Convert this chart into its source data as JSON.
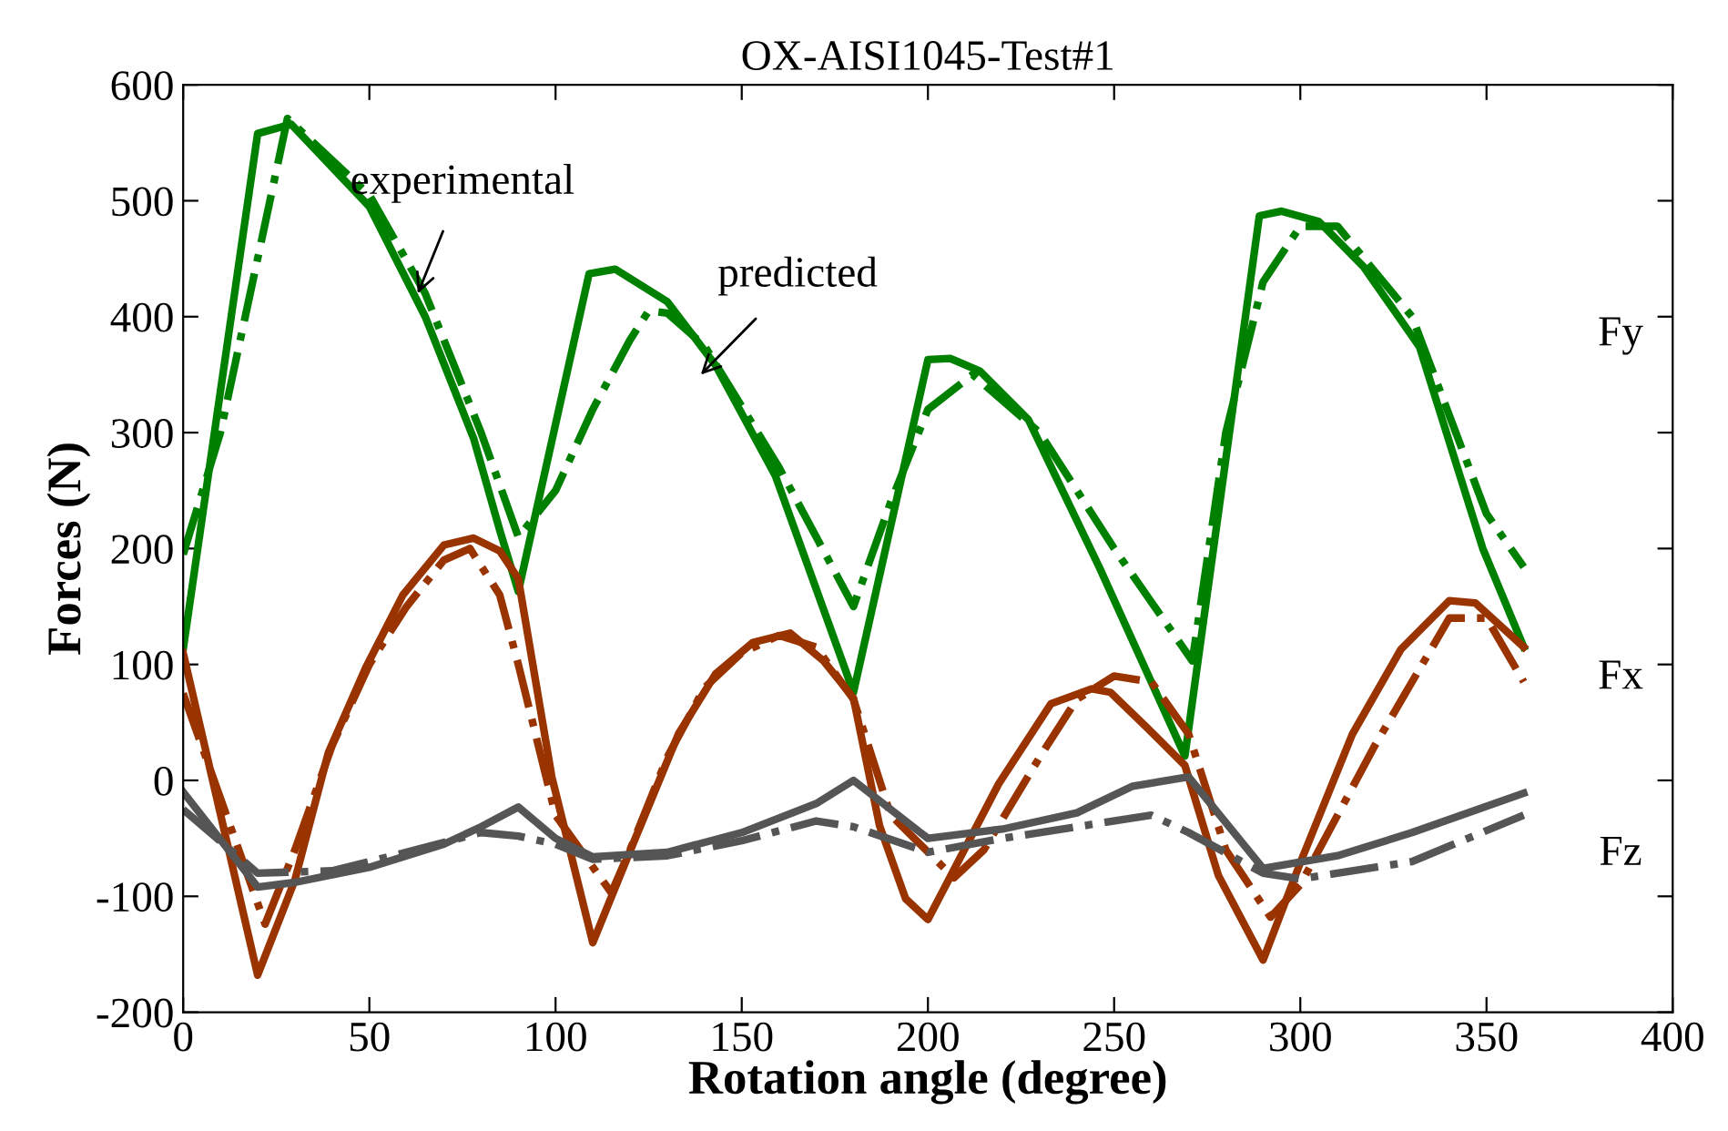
{
  "chart_data": {
    "type": "line",
    "title": "OX-AISI1045-Test#1",
    "xlabel": "Rotation angle (degree)",
    "ylabel": "Forces (N)",
    "xlim": [
      0,
      400
    ],
    "xticks": [
      0,
      50,
      100,
      150,
      200,
      250,
      300,
      350,
      400
    ],
    "ylim": [
      -200,
      600
    ],
    "yticks": [
      -200,
      -100,
      0,
      100,
      200,
      300,
      400,
      500,
      600
    ],
    "grid": false,
    "legend": false,
    "marker": "none",
    "series": [
      {
        "color": "#008000",
        "line_style": "solid",
        "x": [
          0,
          20,
          29,
          50,
          65,
          78,
          85,
          90,
          109,
          116,
          130,
          143,
          159,
          180,
          200,
          206,
          214,
          227,
          246,
          269,
          289,
          295,
          305,
          317,
          332,
          349,
          360
        ],
        "values": [
          113,
          558,
          566,
          495,
          400,
          295,
          216,
          163,
          437,
          441,
          413,
          358,
          263,
          76,
          363,
          364,
          353,
          311,
          184,
          21,
          487,
          491,
          482,
          443,
          374,
          200,
          115
        ]
      },
      {
        "color": "#008000",
        "line_style": "dashdot",
        "x": [
          0,
          10,
          20,
          28,
          50,
          65,
          80,
          90,
          100,
          110,
          120,
          125,
          130,
          140,
          160,
          180,
          190,
          200,
          212,
          230,
          250,
          271,
          280,
          290,
          300,
          310,
          330,
          350,
          360
        ],
        "values": [
          195,
          300,
          450,
          571,
          505,
          420,
          300,
          210,
          250,
          320,
          380,
          405,
          403,
          375,
          270,
          150,
          240,
          320,
          350,
          300,
          200,
          103,
          300,
          430,
          478,
          478,
          400,
          230,
          184
        ]
      },
      {
        "color": "#993300",
        "line_style": "solid",
        "x": [
          0,
          20,
          30,
          39,
          49,
          59,
          70,
          78,
          85,
          90,
          99,
          110,
          120,
          133,
          143,
          153,
          163,
          172,
          180,
          187,
          194,
          200,
          219,
          233,
          244,
          249,
          259,
          269,
          278,
          290,
          300,
          314,
          327,
          340,
          347,
          360
        ],
        "values": [
          110,
          -168,
          -86,
          24,
          97,
          160,
          203,
          209,
          198,
          174,
          3,
          -140,
          -61,
          40,
          92,
          119,
          127,
          103,
          71,
          -39,
          -102,
          -120,
          -3,
          66,
          79,
          76,
          45,
          13,
          -82,
          -155,
          -71,
          40,
          113,
          155,
          153,
          115
        ]
      },
      {
        "color": "#993300",
        "line_style": "dashdot",
        "x": [
          0,
          22,
          30,
          40,
          50,
          60,
          70,
          77,
          85,
          90,
          100,
          115,
          120,
          130,
          140,
          150,
          160,
          170,
          180,
          190,
          207,
          215,
          230,
          240,
          250,
          260,
          270,
          280,
          292,
          300,
          320,
          340,
          350,
          360
        ],
        "values": [
          75,
          -124,
          -60,
          30,
          100,
          150,
          190,
          200,
          160,
          100,
          -30,
          -97,
          -60,
          20,
          80,
          110,
          125,
          115,
          70,
          -30,
          -84,
          -60,
          20,
          70,
          90,
          85,
          40,
          -60,
          -118,
          -90,
          30,
          140,
          140,
          85
        ]
      },
      {
        "color": "#555555",
        "line_style": "solid",
        "x": [
          0,
          20,
          30,
          50,
          70,
          80,
          90,
          100,
          110,
          130,
          150,
          170,
          180,
          200,
          220,
          240,
          255,
          270,
          290,
          310,
          330,
          360
        ],
        "values": [
          -10,
          -92,
          -88,
          -75,
          -55,
          -40,
          -23,
          -50,
          -66,
          -62,
          -45,
          -20,
          0,
          -50,
          -42,
          -28,
          -5,
          3,
          -76,
          -65,
          -45,
          -11
        ]
      },
      {
        "color": "#555555",
        "line_style": "dashdot",
        "x": [
          0,
          20,
          40,
          60,
          80,
          90,
          100,
          110,
          130,
          150,
          170,
          180,
          200,
          220,
          240,
          260,
          270,
          290,
          300,
          330,
          360
        ],
        "values": [
          -25,
          -80,
          -78,
          -62,
          -45,
          -48,
          -55,
          -68,
          -65,
          -52,
          -35,
          -40,
          -62,
          -50,
          -40,
          -30,
          -45,
          -80,
          -85,
          -70,
          -30
        ]
      }
    ],
    "annotations": [
      {
        "text": "experimental",
        "x": 63,
        "y": 420
      },
      {
        "text": "predicted",
        "x": 139,
        "y": 350
      },
      "Fy",
      "Fx",
      "Fz"
    ]
  }
}
